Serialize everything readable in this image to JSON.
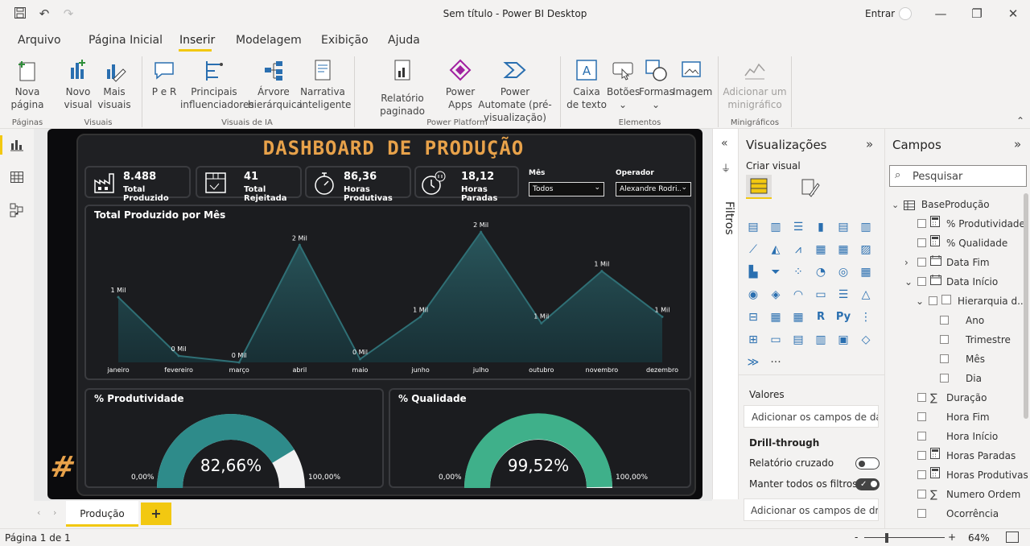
{
  "window": {
    "title": "Sem título - Power BI Desktop",
    "signin": "Entrar"
  },
  "menu": {
    "tabs": [
      "Arquivo",
      "Página Inicial",
      "Inserir",
      "Modelagem",
      "Exibição",
      "Ajuda"
    ]
  },
  "ribbon": {
    "nova_pagina": "Nova página",
    "novo_visual": "Novo visual",
    "mais_visuais": "Mais visuais",
    "per": "P e R",
    "principais": "Principais influenciadores",
    "arvore": "Árvore hierárquica",
    "narrativa": "Narrativa inteligente",
    "relatorio": "Relatório paginado",
    "power_apps": "Power Apps",
    "power_automate": "Power Automate (pré-visualização)",
    "caixa_texto": "Caixa de texto",
    "botoes": "Botões",
    "formas": "Formas",
    "imagem": "Imagem",
    "minigrafico": "Adicionar um minigráfico",
    "groups": {
      "paginas": "Páginas",
      "visuais": "Visuais",
      "visuais_ia": "Visuais de IA",
      "power_platform": "Power Platform",
      "elementos": "Elementos",
      "minigraficos": "Minigráficos"
    }
  },
  "dashboard": {
    "title": "DASHBOARD DE PRODUÇÃO",
    "kpis": [
      {
        "value": "8.488",
        "label": "Total Produzido",
        "icon": "factory-icon"
      },
      {
        "value": "41",
        "label": "Total Rejeitada",
        "icon": "box-icon"
      },
      {
        "value": "86,36",
        "label": "Horas Produtivas",
        "icon": "stopwatch-icon"
      },
      {
        "value": "18,12",
        "label": "Horas Paradas",
        "icon": "clock-pause-icon"
      }
    ],
    "slicers": [
      {
        "label": "Mês",
        "value": "Todos"
      },
      {
        "label": "Operador",
        "value": "Alexandre Rodri..."
      }
    ],
    "produtividade": {
      "title": "% Produtividade",
      "value": "82,66%",
      "min": "0,00%",
      "max": "100,00%",
      "fraction": 0.8266
    },
    "qualidade": {
      "title": "% Qualidade",
      "value": "99,52%",
      "min": "0,00%",
      "max": "100,00%",
      "fraction": 0.9952
    },
    "logo": "#"
  },
  "chart_data": {
    "type": "area",
    "title": "Total Produzido por Mês",
    "categories": [
      "janeiro",
      "fevereiro",
      "março",
      "abril",
      "maio",
      "junho",
      "julho",
      "outubro",
      "novembro",
      "dezembro"
    ],
    "values": [
      1.0,
      0.1,
      0.0,
      1.8,
      0.05,
      0.7,
      2.0,
      0.6,
      1.4,
      0.7
    ],
    "labels": [
      "1 Mil",
      "0 Mil",
      "0 Mil",
      "2 Mil",
      "0 Mil",
      "1 Mil",
      "2 Mil",
      "1 Mil",
      "1 Mil",
      "1 Mil"
    ],
    "ylim": [
      0,
      2.1
    ],
    "colors": {
      "line": "#2f6f75",
      "fill": "#1d3d44"
    }
  },
  "filters": {
    "label": "Filtros"
  },
  "viz": {
    "title": "Visualizações",
    "criar": "Criar visual",
    "valores": "Valores",
    "valores_placeholder": "Adicionar os campos de da...",
    "drill": "Drill-through",
    "relatorio_cruzado": "Relatório cruzado",
    "manter": "Manter todos os filtros",
    "drill_placeholder": "Adicionar os campos de dr...",
    "more": "···"
  },
  "fields": {
    "title": "Campos",
    "search_placeholder": "Pesquisar",
    "table": "BaseProdução",
    "items": [
      {
        "label": "% Produtividade",
        "indent": 1,
        "icon": "calc-icon"
      },
      {
        "label": "% Qualidade",
        "indent": 1,
        "icon": "calc-icon"
      },
      {
        "label": "Data Fim",
        "indent": 1,
        "icon": "calendar-icon",
        "expander": "›"
      },
      {
        "label": "Data Início",
        "indent": 1,
        "icon": "calendar-icon",
        "expander": "⌄"
      },
      {
        "label": "Hierarquia d...",
        "indent": 2,
        "icon": "hierarchy-icon",
        "expander": "⌄"
      },
      {
        "label": "Ano",
        "indent": 3,
        "icon": ""
      },
      {
        "label": "Trimestre",
        "indent": 3,
        "icon": ""
      },
      {
        "label": "Mês",
        "indent": 3,
        "icon": ""
      },
      {
        "label": "Dia",
        "indent": 3,
        "icon": ""
      },
      {
        "label": "Duração",
        "indent": 1,
        "icon": "sigma-icon"
      },
      {
        "label": "Hora Fim",
        "indent": 1,
        "icon": ""
      },
      {
        "label": "Hora Início",
        "indent": 1,
        "icon": ""
      },
      {
        "label": "Horas Paradas",
        "indent": 1,
        "icon": "calc-icon"
      },
      {
        "label": "Horas Produtivas",
        "indent": 1,
        "icon": "calc-icon"
      },
      {
        "label": "Numero Ordem",
        "indent": 1,
        "icon": "sigma-icon"
      },
      {
        "label": "Ocorrência",
        "indent": 1,
        "icon": ""
      }
    ]
  },
  "pages": {
    "tab": "Produção",
    "add": "+"
  },
  "status": {
    "page": "Página 1 de 1",
    "zoom": "64%",
    "minus": "-",
    "plus": "+"
  }
}
